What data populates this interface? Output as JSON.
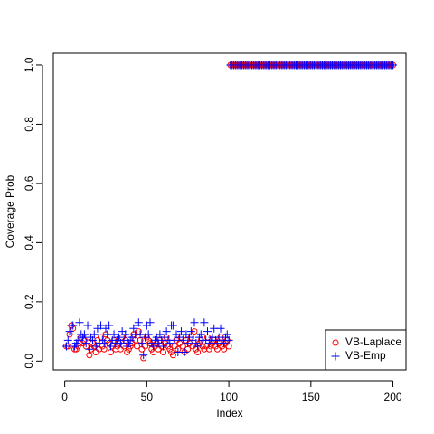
{
  "chart_data": {
    "type": "scatter",
    "x_label": "Index",
    "y_label": "Coverage Prob",
    "xlim": [
      -6.96,
      207.96
    ],
    "ylim": [
      -0.0296,
      1.0396
    ],
    "xticks": [
      0,
      50,
      100,
      150,
      200
    ],
    "yticks": [
      {
        "value": 0,
        "label": "0.0"
      },
      0.2,
      0.4,
      0.6,
      0.8,
      {
        "value": 1,
        "label": "1.0"
      }
    ],
    "legend": "bottom-right",
    "grid": false,
    "x": [
      1,
      2,
      3,
      4,
      5,
      6,
      7,
      8,
      9,
      10,
      11,
      12,
      13,
      14,
      15,
      16,
      17,
      18,
      19,
      20,
      21,
      22,
      23,
      24,
      25,
      26,
      27,
      28,
      29,
      30,
      31,
      32,
      33,
      34,
      35,
      36,
      37,
      38,
      39,
      40,
      41,
      42,
      43,
      44,
      45,
      46,
      47,
      48,
      49,
      50,
      51,
      52,
      53,
      54,
      55,
      56,
      57,
      58,
      59,
      60,
      61,
      62,
      63,
      64,
      65,
      66,
      67,
      68,
      69,
      70,
      71,
      72,
      73,
      74,
      75,
      76,
      77,
      78,
      79,
      80,
      81,
      82,
      83,
      84,
      85,
      86,
      87,
      88,
      89,
      90,
      91,
      92,
      93,
      94,
      95,
      96,
      97,
      98,
      99,
      100,
      101,
      102,
      103,
      104,
      105,
      106,
      107,
      108,
      109,
      110,
      111,
      112,
      113,
      114,
      115,
      116,
      117,
      118,
      119,
      120,
      121,
      122,
      123,
      124,
      125,
      126,
      127,
      128,
      129,
      130,
      131,
      132,
      133,
      134,
      135,
      136,
      137,
      138,
      139,
      140,
      141,
      142,
      143,
      144,
      145,
      146,
      147,
      148,
      149,
      150,
      151,
      152,
      153,
      154,
      155,
      156,
      157,
      158,
      159,
      160,
      161,
      162,
      163,
      164,
      165,
      166,
      167,
      168,
      169,
      170,
      171,
      172,
      173,
      174,
      175,
      176,
      177,
      178,
      179,
      180,
      181,
      182,
      183,
      184,
      185,
      186,
      187,
      188,
      189,
      190,
      191,
      192,
      193,
      194,
      195,
      196,
      197,
      198,
      199,
      200
    ],
    "series": [
      {
        "name": "VB-Laplace",
        "color": "#ff0000",
        "marker": "circle",
        "values": [
          0.05,
          0.05,
          0.09,
          0.12,
          0.11,
          0.04,
          0.04,
          0.05,
          0.06,
          0.08,
          0.06,
          0.07,
          0.05,
          0.08,
          0.02,
          0.04,
          0.06,
          0.05,
          0.03,
          0.07,
          0.04,
          0.08,
          0.05,
          0.04,
          0.09,
          0.07,
          0.06,
          0.03,
          0.05,
          0.07,
          0.04,
          0.05,
          0.06,
          0.04,
          0.08,
          0.05,
          0.07,
          0.03,
          0.04,
          0.05,
          0.06,
          0.09,
          0.07,
          0.05,
          0.1,
          0.07,
          0.04,
          0.01,
          0.05,
          0.08,
          0.07,
          0.06,
          0.04,
          0.03,
          0.05,
          0.06,
          0.04,
          0.07,
          0.05,
          0.03,
          0.06,
          0.08,
          0.05,
          0.04,
          0.03,
          0.02,
          0.05,
          0.07,
          0.04,
          0.06,
          0.08,
          0.05,
          0.03,
          0.07,
          0.04,
          0.06,
          0.08,
          0.05,
          0.1,
          0.04,
          0.03,
          0.06,
          0.07,
          0.05,
          0.04,
          0.05,
          0.08,
          0.04,
          0.05,
          0.06,
          0.07,
          0.05,
          0.04,
          0.06,
          0.08,
          0.05,
          0.04,
          0.06,
          0.07,
          0.05,
          1,
          1,
          1,
          1,
          1,
          1,
          1,
          1,
          1,
          1,
          1,
          1,
          1,
          1,
          1,
          1,
          1,
          1,
          1,
          1,
          1,
          1,
          1,
          1,
          1,
          1,
          1,
          1,
          1,
          1,
          1,
          1,
          1,
          1,
          1,
          1,
          1,
          1,
          1,
          1,
          1,
          1,
          1,
          1,
          1,
          1,
          1,
          1,
          1,
          1,
          1,
          1,
          1,
          1,
          1,
          1,
          1,
          1,
          1,
          1,
          1,
          1,
          1,
          1,
          1,
          1,
          1,
          1,
          1,
          1,
          1,
          1,
          1,
          1,
          1,
          1,
          1,
          1,
          1,
          1,
          1,
          1,
          1,
          1,
          1,
          1,
          1,
          1,
          1,
          1,
          1,
          1,
          1,
          1,
          1,
          1,
          1,
          1,
          1,
          1
        ]
      },
      {
        "name": "VB-Emp",
        "color": "#0000ff",
        "marker": "plus",
        "values": [
          0.05,
          0.07,
          0.1,
          0.12,
          0.12,
          0.05,
          0.06,
          0.07,
          0.13,
          0.09,
          0.08,
          0.09,
          0.06,
          0.12,
          0.04,
          0.08,
          0.07,
          0.09,
          0.05,
          0.11,
          0.06,
          0.12,
          0.07,
          0.06,
          0.11,
          0.09,
          0.12,
          0.05,
          0.07,
          0.09,
          0.06,
          0.07,
          0.08,
          0.06,
          0.1,
          0.07,
          0.09,
          0.05,
          0.06,
          0.07,
          0.08,
          0.11,
          0.09,
          0.12,
          0.13,
          0.09,
          0.06,
          0.02,
          0.08,
          0.12,
          0.09,
          0.13,
          0.06,
          0.05,
          0.07,
          0.08,
          0.06,
          0.09,
          0.07,
          0.05,
          0.08,
          0.1,
          0.07,
          0.06,
          0.12,
          0.12,
          0.07,
          0.09,
          0.03,
          0.08,
          0.1,
          0.07,
          0.03,
          0.09,
          0.06,
          0.08,
          0.1,
          0.07,
          0.13,
          0.06,
          0.05,
          0.08,
          0.09,
          0.07,
          0.13,
          0.07,
          0.1,
          0.06,
          0.07,
          0.08,
          0.11,
          0.07,
          0.06,
          0.08,
          0.11,
          0.07,
          0.06,
          0.08,
          0.09,
          0.07,
          1,
          1,
          1,
          1,
          1,
          1,
          1,
          1,
          1,
          1,
          1,
          1,
          1,
          1,
          1,
          1,
          1,
          1,
          1,
          1,
          1,
          1,
          1,
          1,
          1,
          1,
          1,
          1,
          1,
          1,
          1,
          1,
          1,
          1,
          1,
          1,
          1,
          1,
          1,
          1,
          1,
          1,
          1,
          1,
          1,
          1,
          1,
          1,
          1,
          1,
          1,
          1,
          1,
          1,
          1,
          1,
          1,
          1,
          1,
          1,
          1,
          1,
          1,
          1,
          1,
          1,
          1,
          1,
          1,
          1,
          1,
          1,
          1,
          1,
          1,
          1,
          1,
          1,
          1,
          1,
          1,
          1,
          1,
          1,
          1,
          1,
          1,
          1,
          1,
          1,
          1,
          1,
          1,
          1,
          1,
          1,
          1,
          1,
          1,
          1
        ]
      }
    ]
  }
}
